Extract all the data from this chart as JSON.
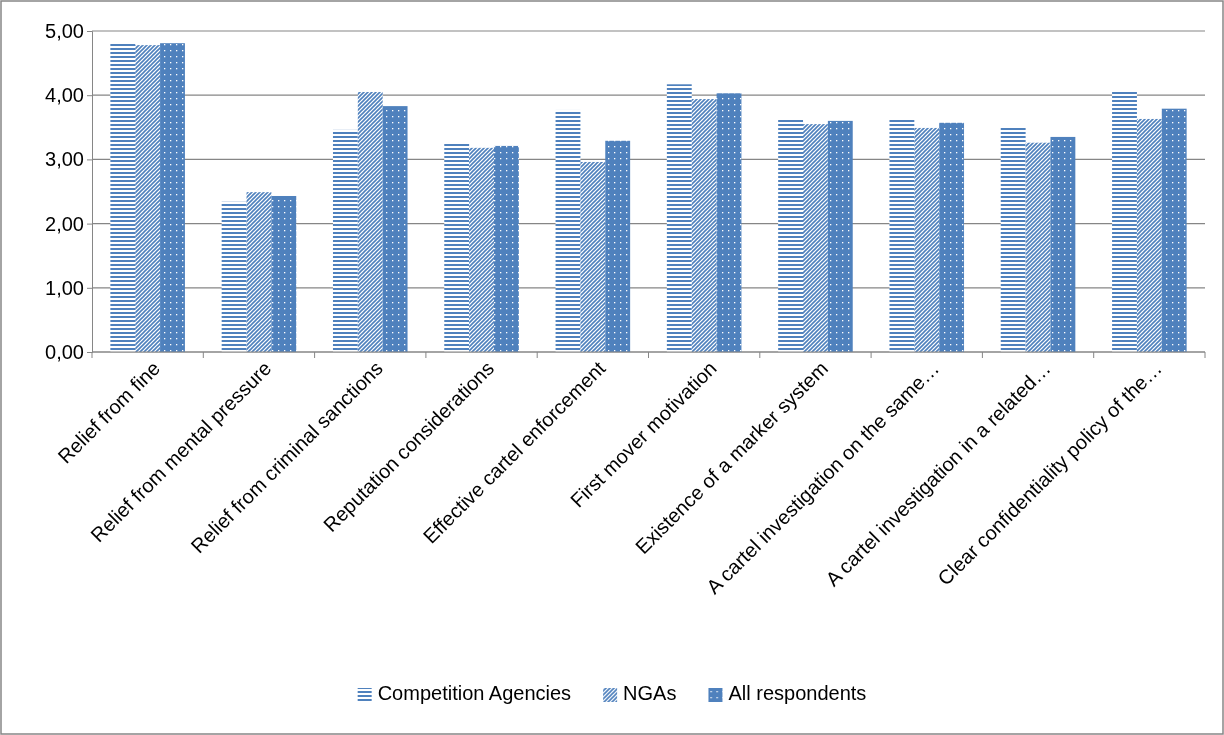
{
  "chart_data": {
    "type": "bar",
    "categories": [
      "Relief from fine",
      "Relief from mental pressure",
      "Relief from criminal sanctions",
      "Reputation considerations",
      "Effective cartel enforcement",
      "First mover motivation",
      "Existence of a marker system",
      "A cartel investigation on the same…",
      "A cartel investigation in a related…",
      "Clear confidentiality policy of the…"
    ],
    "series": [
      {
        "name": "Competition Agencies",
        "color": "#4f81bd",
        "values": [
          4.81,
          2.34,
          3.46,
          3.26,
          3.77,
          4.17,
          3.64,
          3.64,
          3.49,
          4.05
        ]
      },
      {
        "name": "NGAs",
        "color": "#4f81bd",
        "values": [
          4.78,
          2.49,
          4.05,
          3.18,
          2.96,
          3.94,
          3.55,
          3.49,
          3.26,
          3.63
        ]
      },
      {
        "name": "All respondents",
        "color": "#4f81bd",
        "values": [
          4.81,
          2.43,
          3.83,
          3.21,
          3.29,
          4.03,
          3.6,
          3.57,
          3.35,
          3.79
        ]
      }
    ],
    "ylim": [
      0,
      5
    ],
    "yticks": [
      {
        "value": 0,
        "label": "0,00"
      },
      {
        "value": 1,
        "label": "1,00"
      },
      {
        "value": 2,
        "label": "2,00"
      },
      {
        "value": 3,
        "label": "3,00"
      },
      {
        "value": 4,
        "label": "4,00"
      },
      {
        "value": 5,
        "label": "5,00"
      }
    ],
    "grid": "y",
    "legend": "bottom"
  }
}
